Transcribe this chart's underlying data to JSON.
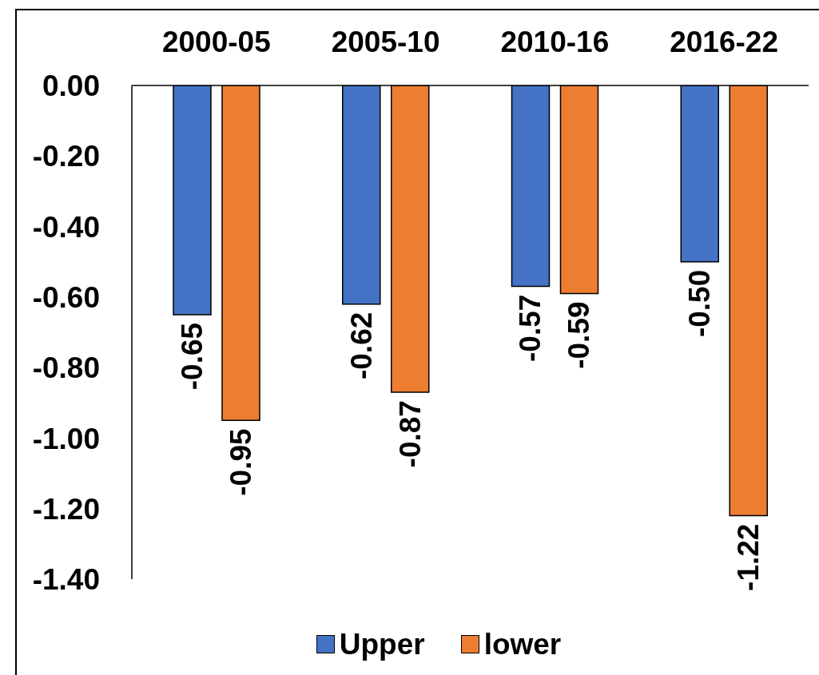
{
  "chart_data": {
    "type": "bar",
    "categories": [
      "2000-05",
      "2005-10",
      "2010-16",
      "2016-22"
    ],
    "series": [
      {
        "name": "Upper",
        "color": "#4472c4",
        "values": [
          -0.65,
          -0.62,
          -0.57,
          -0.5
        ],
        "value_labels": [
          "-0.65",
          "-0.62",
          "-0.57",
          "-0.50"
        ]
      },
      {
        "name": "lower",
        "color": "#ed7d31",
        "values": [
          -0.95,
          -0.87,
          -0.59,
          -1.22
        ],
        "value_labels": [
          "-0.95",
          "-0.87",
          "-0.59",
          "-1.22"
        ]
      }
    ],
    "ylim": [
      -1.4,
      0
    ],
    "yticks": [
      {
        "value": 0,
        "label": "0.00"
      },
      {
        "value": -0.2,
        "label": "-0.20"
      },
      {
        "value": -0.4,
        "label": "-0.40"
      },
      {
        "value": -0.6,
        "label": "-0.60"
      },
      {
        "value": -0.8,
        "label": "-0.80"
      },
      {
        "value": -1,
        "label": "-1.00"
      },
      {
        "value": -1.2,
        "label": "-1.20"
      },
      {
        "value": -1.4,
        "label": "-1.40"
      }
    ],
    "legend": "bottom"
  }
}
